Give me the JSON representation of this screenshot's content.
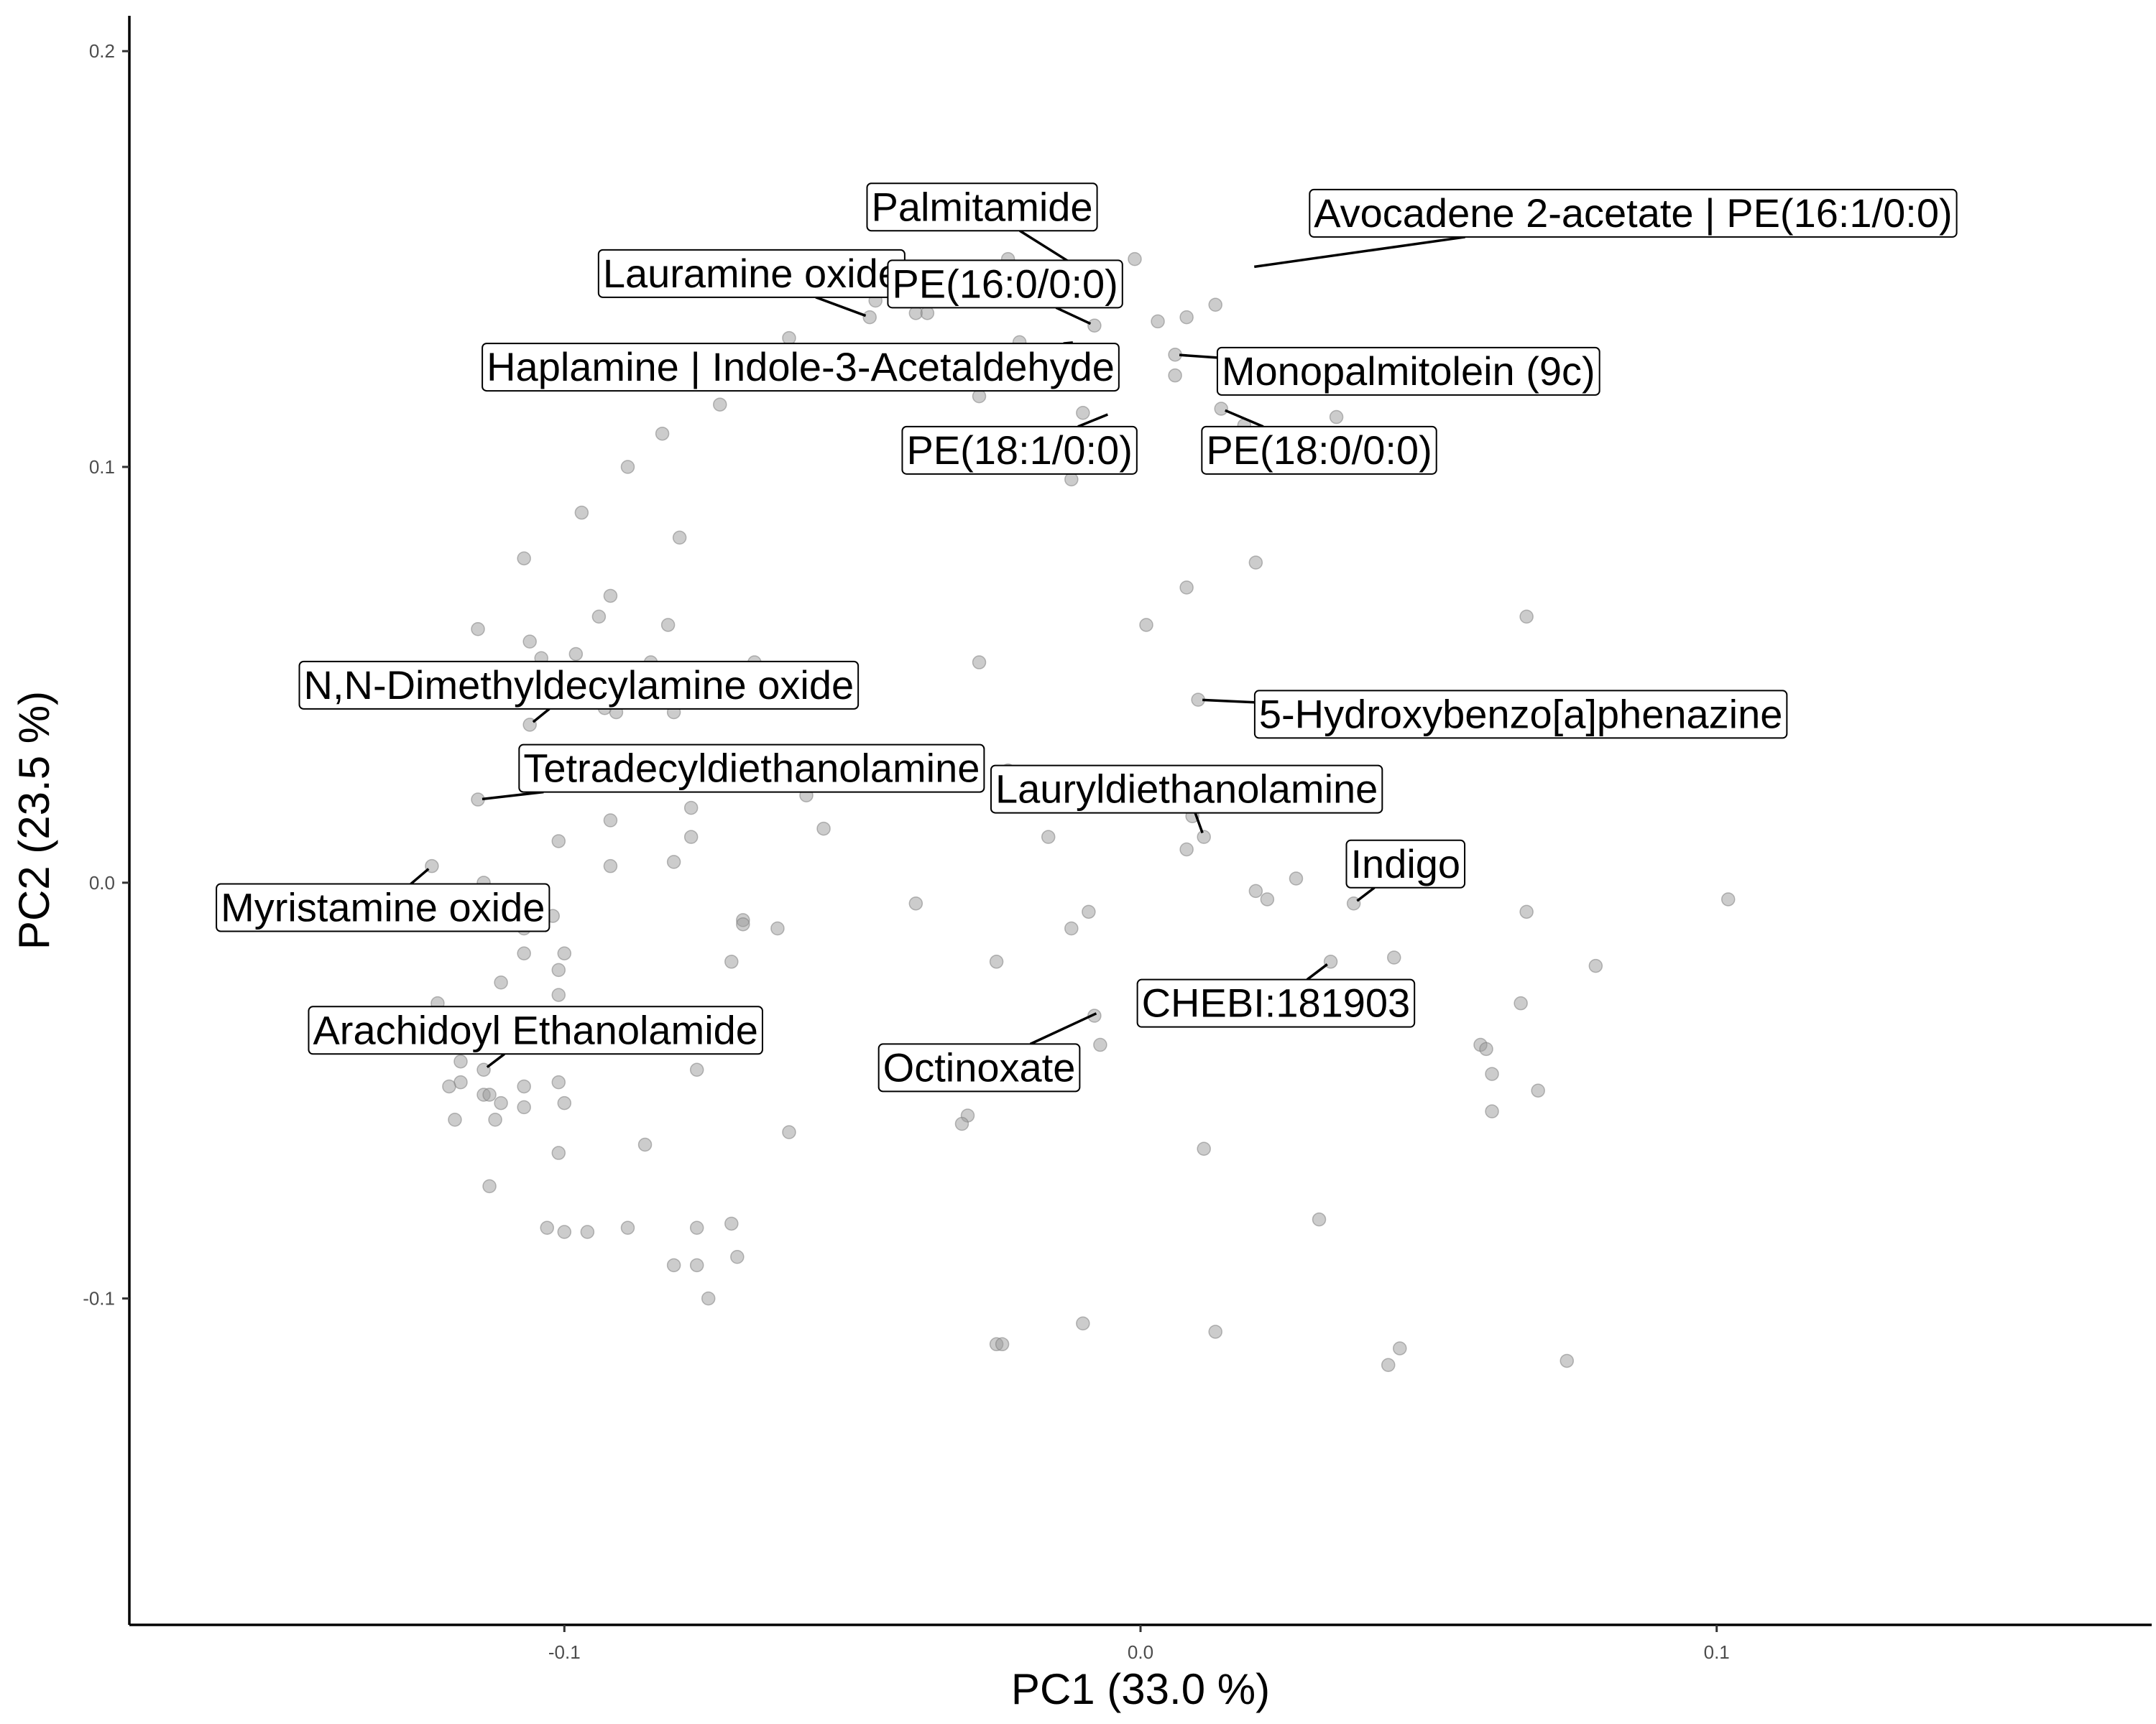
{
  "chart_data": {
    "type": "scatter",
    "title": "",
    "xlabel": "PC1 (33.0 %)",
    "ylabel": "PC2 (23.5 %)",
    "xlim": [
      -0.1755,
      0.1755
    ],
    "ylim": [
      -0.1785,
      0.2085
    ],
    "x_ticks": [
      {
        "value": -0.1,
        "label": "-0.1"
      },
      {
        "value": 0.0,
        "label": "0.0"
      },
      {
        "value": 0.1,
        "label": "0.1"
      }
    ],
    "y_ticks": [
      {
        "value": -0.1,
        "label": "-0.1"
      },
      {
        "value": 0.0,
        "label": "0.0"
      },
      {
        "value": 0.1,
        "label": "0.1"
      },
      {
        "value": 0.2,
        "label": "0.2"
      }
    ],
    "grid": false,
    "legend": "none",
    "point_color": "#999999",
    "points": [
      [
        -0.047,
        0.136
      ],
      [
        -0.046,
        0.14
      ],
      [
        -0.042,
        0.14
      ],
      [
        -0.039,
        0.137
      ],
      [
        -0.037,
        0.137
      ],
      [
        -0.034,
        0.146
      ],
      [
        -0.03,
        0.147
      ],
      [
        -0.023,
        0.15
      ],
      [
        -0.012,
        0.148
      ],
      [
        -0.001,
        0.15
      ],
      [
        -0.008,
        0.134
      ],
      [
        0.003,
        0.135
      ],
      [
        0.008,
        0.136
      ],
      [
        0.013,
        0.139
      ],
      [
        0.006,
        0.127
      ],
      [
        0.006,
        0.122
      ],
      [
        0.014,
        0.114
      ],
      [
        0.018,
        0.11
      ],
      [
        0.034,
        0.112
      ],
      [
        -0.01,
        0.113
      ],
      [
        -0.012,
        0.097
      ],
      [
        -0.028,
        0.117
      ],
      [
        -0.021,
        0.13
      ],
      [
        -0.061,
        0.131
      ],
      [
        -0.073,
        0.115
      ],
      [
        -0.083,
        0.108
      ],
      [
        -0.089,
        0.1
      ],
      [
        -0.097,
        0.089
      ],
      [
        -0.107,
        0.078
      ],
      [
        -0.08,
        0.083
      ],
      [
        -0.092,
        0.069
      ],
      [
        -0.094,
        0.064
      ],
      [
        -0.082,
        0.062
      ],
      [
        -0.115,
        0.061
      ],
      [
        -0.106,
        0.058
      ],
      [
        -0.104,
        0.054
      ],
      [
        -0.098,
        0.055
      ],
      [
        -0.085,
        0.053
      ],
      [
        -0.067,
        0.053
      ],
      [
        -0.06,
        0.045
      ],
      [
        -0.081,
        0.041
      ],
      [
        -0.091,
        0.041
      ],
      [
        -0.093,
        0.042
      ],
      [
        -0.106,
        0.038
      ],
      [
        -0.028,
        0.053
      ],
      [
        0.008,
        0.071
      ],
      [
        0.001,
        0.062
      ],
      [
        0.02,
        0.077
      ],
      [
        0.067,
        0.064
      ],
      [
        0.01,
        0.044
      ],
      [
        -0.115,
        0.02
      ],
      [
        -0.078,
        0.018
      ],
      [
        -0.092,
        0.015
      ],
      [
        -0.055,
        0.013
      ],
      [
        -0.058,
        0.021
      ],
      [
        -0.078,
        0.011
      ],
      [
        -0.101,
        0.01
      ],
      [
        -0.081,
        0.005
      ],
      [
        -0.092,
        0.004
      ],
      [
        -0.123,
        0.004
      ],
      [
        -0.114,
        0.0
      ],
      [
        -0.023,
        0.027
      ],
      [
        -0.016,
        0.011
      ],
      [
        0.009,
        0.016
      ],
      [
        0.011,
        0.011
      ],
      [
        0.008,
        0.008
      ],
      [
        0.02,
        -0.002
      ],
      [
        0.022,
        -0.004
      ],
      [
        0.027,
        0.001
      ],
      [
        0.037,
        -0.005
      ],
      [
        0.067,
        -0.007
      ],
      [
        0.102,
        -0.004
      ],
      [
        -0.039,
        -0.005
      ],
      [
        -0.069,
        -0.009
      ],
      [
        -0.069,
        -0.01
      ],
      [
        -0.063,
        -0.011
      ],
      [
        -0.102,
        -0.008
      ],
      [
        -0.107,
        -0.011
      ],
      [
        -0.1,
        -0.017
      ],
      [
        -0.107,
        -0.017
      ],
      [
        -0.071,
        -0.019
      ],
      [
        -0.025,
        -0.019
      ],
      [
        -0.012,
        -0.011
      ],
      [
        -0.009,
        -0.007
      ],
      [
        0.033,
        -0.019
      ],
      [
        0.044,
        -0.018
      ],
      [
        0.079,
        -0.02
      ],
      [
        0.066,
        -0.029
      ],
      [
        -0.111,
        -0.024
      ],
      [
        -0.101,
        -0.021
      ],
      [
        -0.101,
        -0.027
      ],
      [
        -0.122,
        -0.029
      ],
      [
        -0.119,
        -0.035
      ],
      [
        -0.118,
        -0.043
      ],
      [
        -0.114,
        -0.045
      ],
      [
        -0.107,
        -0.049
      ],
      [
        -0.114,
        -0.051
      ],
      [
        -0.113,
        -0.051
      ],
      [
        -0.118,
        -0.048
      ],
      [
        -0.12,
        -0.049
      ],
      [
        -0.101,
        -0.048
      ],
      [
        -0.107,
        -0.054
      ],
      [
        -0.111,
        -0.053
      ],
      [
        -0.1,
        -0.053
      ],
      [
        -0.112,
        -0.057
      ],
      [
        -0.119,
        -0.057
      ],
      [
        -0.101,
        -0.065
      ],
      [
        -0.086,
        -0.063
      ],
      [
        -0.061,
        -0.06
      ],
      [
        -0.077,
        -0.045
      ],
      [
        -0.007,
        -0.039
      ],
      [
        -0.008,
        -0.032
      ],
      [
        0.02,
        -0.025
      ],
      [
        0.059,
        -0.039
      ],
      [
        0.06,
        -0.04
      ],
      [
        0.061,
        -0.046
      ],
      [
        0.069,
        -0.05
      ],
      [
        0.061,
        -0.055
      ],
      [
        -0.03,
        -0.056
      ],
      [
        -0.031,
        -0.058
      ],
      [
        0.011,
        -0.064
      ],
      [
        -0.113,
        -0.073
      ],
      [
        -0.103,
        -0.083
      ],
      [
        -0.1,
        -0.084
      ],
      [
        -0.096,
        -0.084
      ],
      [
        -0.089,
        -0.083
      ],
      [
        -0.077,
        -0.083
      ],
      [
        -0.071,
        -0.082
      ],
      [
        -0.07,
        -0.09
      ],
      [
        -0.077,
        -0.092
      ],
      [
        -0.081,
        -0.092
      ],
      [
        -0.075,
        -0.1
      ],
      [
        -0.025,
        -0.111
      ],
      [
        -0.024,
        -0.111
      ],
      [
        -0.01,
        -0.106
      ],
      [
        0.031,
        -0.081
      ],
      [
        0.043,
        -0.116
      ],
      [
        0.045,
        -0.112
      ],
      [
        0.074,
        -0.115
      ],
      [
        0.013,
        -0.108
      ],
      [
        -0.04,
        -0.041
      ]
    ],
    "annotations": [
      {
        "text": "Palmitamide",
        "x": -0.012,
        "y": 0.149,
        "lx": -0.0275,
        "ly": 0.1625
      },
      {
        "text": "Avocadene 2-acetate | PE(16:1/0:0)",
        "x": 0.019,
        "y": 0.148,
        "lx": 0.0855,
        "ly": 0.161
      },
      {
        "text": "Lauramine oxide",
        "x": -0.047,
        "y": 0.136,
        "lx": -0.0675,
        "ly": 0.1465
      },
      {
        "text": "PE(16:0/0:0)",
        "x": -0.008,
        "y": 0.134,
        "lx": -0.0235,
        "ly": 0.144
      },
      {
        "text": "Haplamine | Indole-3-Acetaldehyde",
        "x": -0.011,
        "y": 0.13,
        "lx": -0.059,
        "ly": 0.124
      },
      {
        "text": "Monopalmitolein (9c)",
        "x": 0.006,
        "y": 0.127,
        "lx": 0.0465,
        "ly": 0.123
      },
      {
        "text": "PE(18:1/0:0)",
        "x": -0.005,
        "y": 0.113,
        "lx": -0.021,
        "ly": 0.104
      },
      {
        "text": "PE(18:0/0:0)",
        "x": 0.014,
        "y": 0.114,
        "lx": 0.031,
        "ly": 0.104
      },
      {
        "text": "N,N-Dimethyldecylamine oxide",
        "x": -0.106,
        "y": 0.038,
        "lx": -0.0975,
        "ly": 0.0475
      },
      {
        "text": "5-Hydroxybenzo[a]phenazine",
        "x": 0.01,
        "y": 0.044,
        "lx": 0.066,
        "ly": 0.0405
      },
      {
        "text": "Tetradecyldiethanolamine",
        "x": -0.115,
        "y": 0.02,
        "lx": -0.0675,
        "ly": 0.0275
      },
      {
        "text": "Lauryldiethanolamine",
        "x": 0.011,
        "y": 0.011,
        "lx": 0.008,
        "ly": 0.0225
      },
      {
        "text": "Indigo",
        "x": 0.037,
        "y": -0.005,
        "lx": 0.046,
        "ly": 0.0045
      },
      {
        "text": "Myristamine oxide",
        "x": -0.123,
        "y": 0.004,
        "lx": -0.1315,
        "ly": -0.006
      },
      {
        "text": "CHEBI:181903",
        "x": 0.033,
        "y": -0.019,
        "lx": 0.0235,
        "ly": -0.029
      },
      {
        "text": "Arachidoyl Ethanolamide",
        "x": -0.114,
        "y": -0.045,
        "lx": -0.105,
        "ly": -0.0355
      },
      {
        "text": "Octinoxate",
        "x": -0.007,
        "y": -0.031,
        "lx": -0.028,
        "ly": -0.0445
      }
    ]
  }
}
